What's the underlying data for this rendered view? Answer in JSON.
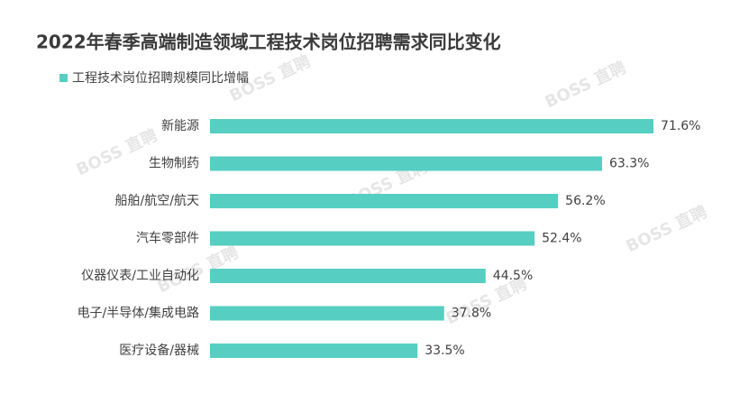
{
  "chart_data": {
    "type": "bar",
    "orientation": "horizontal",
    "title": "2022年春季高端制造领域工程技术岗位招聘需求同比变化",
    "watermark": "BOSS 直聘",
    "series": [
      {
        "name": "工程技术岗位招聘规模同比增幅",
        "color": "#56cec2",
        "values": [
          71.6,
          63.3,
          56.2,
          52.4,
          44.5,
          37.8,
          33.5
        ],
        "value_labels": [
          "71.6%",
          "63.3%",
          "56.2%",
          "52.4%",
          "44.5%",
          "37.8%",
          "33.5%"
        ]
      }
    ],
    "categories": [
      "新能源",
      "生物制药",
      "船舶/航空/航天",
      "汽车零部件",
      "仪器仪表/工业自动化",
      "电子/半导体/集成电路",
      "医疗设备/器械"
    ]
  }
}
